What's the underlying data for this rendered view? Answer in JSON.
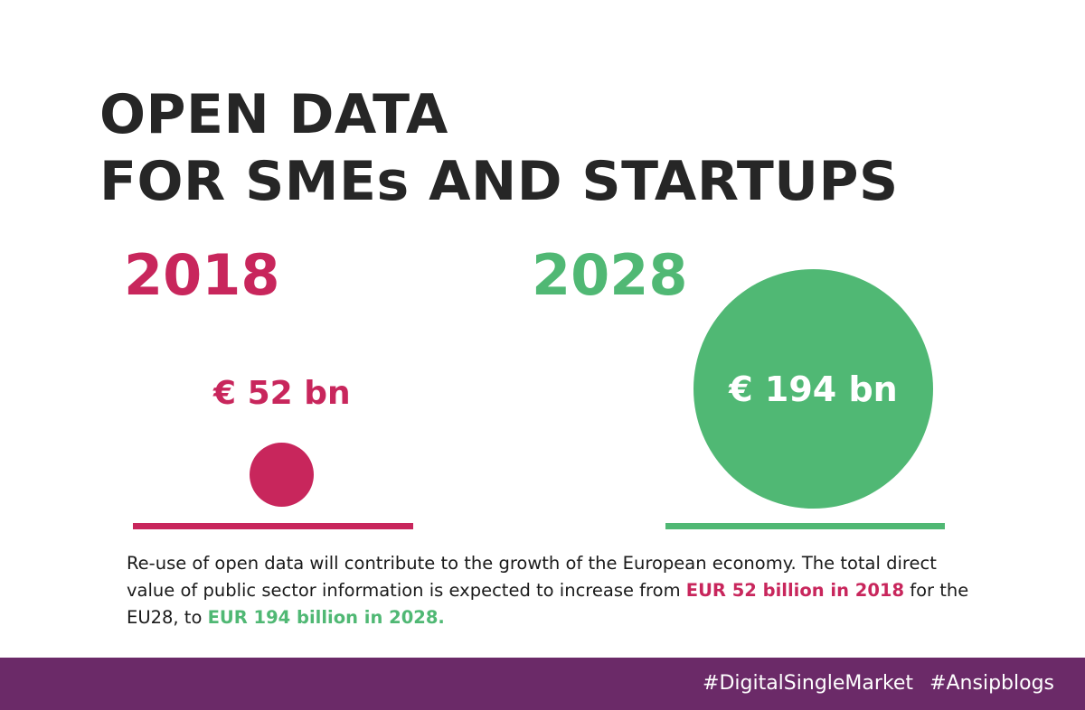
{
  "title": {
    "line1": "OPEN DATA",
    "line2": "FOR SMEs AND STARTUPS"
  },
  "comparison": {
    "left": {
      "year": "2018",
      "value_label": "€ 52 bn",
      "value_bn": 52
    },
    "right": {
      "year": "2028",
      "value_label": "€ 194 bn",
      "value_bn": 194
    }
  },
  "body": {
    "part1": "Re-use of open data will contribute to the growth of the European economy. The total direct value of public sector information is expected to increase from ",
    "highlight1": "EUR 52 billion in 2018",
    "part2": " for the EU28, to ",
    "highlight2": "EUR 194 billion in 2028."
  },
  "footer": {
    "hashtag1": "#DigitalSingleMarket",
    "hashtag2": "#Ansipblogs"
  },
  "colors": {
    "accent_2018": "#c8265c",
    "accent_2028": "#50b874",
    "footer_bg": "#6b2a68",
    "title": "#262626"
  }
}
